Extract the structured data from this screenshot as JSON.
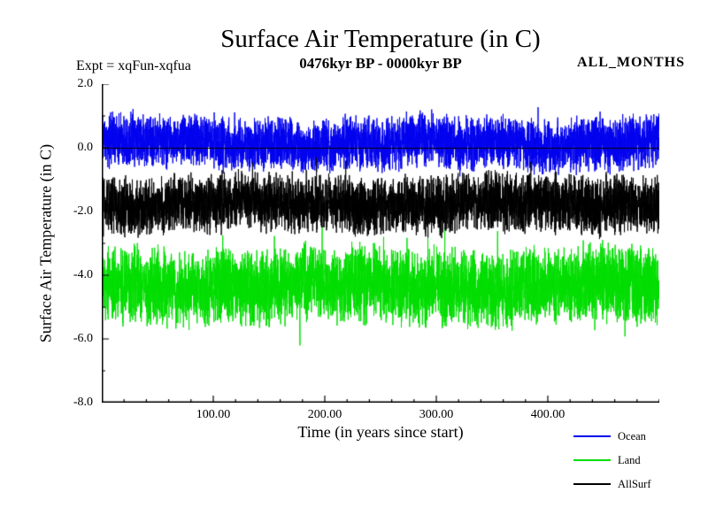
{
  "chart_data": {
    "type": "line",
    "title": "Surface Air Temperature (in C)",
    "annotations": {
      "expt": "Expt = xqFun-xqfua",
      "period": "0476kyr BP - 0000kyr BP",
      "months": "ALL_MONTHS"
    },
    "xlabel": "Time (in years since start)",
    "ylabel": "Surface Air Temperature (in C)",
    "xlim": [
      0,
      500
    ],
    "ylim": [
      -8.0,
      2.0
    ],
    "xtick_values": [
      100,
      200,
      300,
      400
    ],
    "xtick_labels": [
      "100.00",
      "200.00",
      "300.00",
      "400.00"
    ],
    "xminor_step": 20,
    "ytick_values": [
      2.0,
      0.0,
      -2.0,
      -4.0,
      -6.0,
      -8.0
    ],
    "ytick_labels": [
      "2.0",
      "0.0",
      "-2.0",
      "-4.0",
      "-6.0",
      "-8.0"
    ],
    "yminor_step": 1.0,
    "zero_line": 0.0,
    "grid": false,
    "legend_position": "bottom-right",
    "n_points": 5000,
    "series": [
      {
        "name": "Ocean",
        "color": "#0000ee",
        "mean": 0.15,
        "noise_amplitude": 0.95,
        "spike_factor": 1.5,
        "spike_probability": 0.02,
        "observed_range": [
          -1.3,
          1.4
        ]
      },
      {
        "name": "Land",
        "color": "#00dd00",
        "mean": -4.35,
        "noise_amplitude": 1.35,
        "spike_factor": 1.55,
        "spike_probability": 0.02,
        "observed_range": [
          -6.6,
          -2.4
        ]
      },
      {
        "name": "AllSurf",
        "color": "#000000",
        "mean": -1.75,
        "noise_amplitude": 1.05,
        "spike_factor": 1.5,
        "spike_probability": 0.02,
        "observed_range": [
          -3.3,
          -0.4
        ]
      }
    ]
  }
}
